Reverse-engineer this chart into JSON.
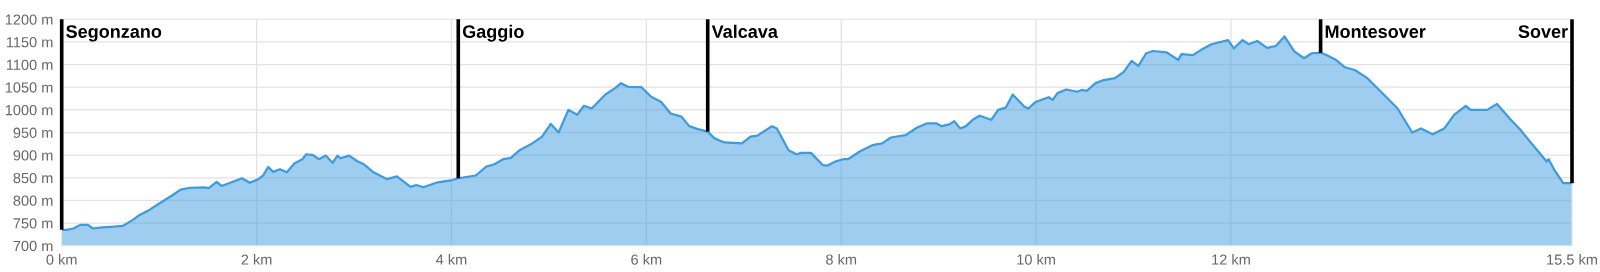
{
  "chart_data": {
    "type": "area",
    "x": [
      0,
      0.05,
      0.12,
      0.19,
      0.27,
      0.32,
      0.39,
      0.53,
      0.63,
      0.73,
      0.8,
      0.9,
      1.03,
      1.14,
      1.22,
      1.32,
      1.46,
      1.51,
      1.59,
      1.64,
      1.73,
      1.85,
      1.93,
      2.02,
      2.07,
      2.12,
      2.17,
      2.24,
      2.31,
      2.39,
      2.47,
      2.51,
      2.58,
      2.64,
      2.71,
      2.78,
      2.83,
      2.86,
      2.95,
      3.03,
      3.1,
      3.2,
      3.34,
      3.44,
      3.58,
      3.64,
      3.71,
      3.86,
      4.01,
      4.07,
      4.25,
      4.36,
      4.44,
      4.53,
      4.61,
      4.7,
      4.83,
      4.93,
      5.02,
      5.1,
      5.2,
      5.29,
      5.36,
      5.44,
      5.58,
      5.68,
      5.74,
      5.81,
      5.95,
      6.05,
      6.15,
      6.25,
      6.36,
      6.44,
      6.52,
      6.63,
      6.7,
      6.8,
      6.98,
      7.07,
      7.14,
      7.29,
      7.34,
      7.46,
      7.54,
      7.59,
      7.69,
      7.81,
      7.86,
      7.93,
      8.02,
      8.07,
      8.19,
      8.32,
      8.42,
      8.51,
      8.66,
      8.78,
      8.88,
      8.98,
      9.03,
      9.11,
      9.16,
      9.22,
      9.28,
      9.35,
      9.42,
      9.54,
      9.61,
      9.69,
      9.76,
      9.88,
      9.92,
      10.0,
      10.13,
      10.17,
      10.22,
      10.31,
      10.42,
      10.47,
      10.52,
      10.61,
      10.68,
      10.81,
      10.9,
      10.98,
      11.05,
      11.13,
      11.2,
      11.34,
      11.46,
      11.49,
      11.61,
      11.69,
      11.8,
      11.97,
      12.03,
      12.12,
      12.18,
      12.27,
      12.37,
      12.46,
      12.55,
      12.65,
      12.75,
      12.83,
      12.92,
      12.98,
      13.08,
      13.17,
      13.27,
      13.4,
      13.54,
      13.71,
      13.86,
      13.95,
      14.07,
      14.19,
      14.29,
      14.41,
      14.46,
      14.63,
      14.73,
      14.86,
      14.97,
      15.1,
      15.24,
      15.26,
      15.32,
      15.41,
      15.5
    ],
    "series": [
      {
        "color": "#3d9be0",
        "values": [
          735,
          735,
          738,
          746,
          746,
          738,
          740,
          742,
          744,
          757,
          768,
          779,
          797,
          812,
          824,
          828,
          829,
          827,
          841,
          832,
          839,
          849,
          839,
          847,
          856,
          874,
          863,
          869,
          862,
          882,
          891,
          902,
          900,
          891,
          899,
          883,
          899,
          893,
          899,
          887,
          880,
          862,
          847,
          853,
          830,
          834,
          829,
          840,
          845,
          849,
          855,
          875,
          880,
          891,
          894,
          911,
          926,
          941,
          969,
          950,
          1000,
          989,
          1009,
          1003,
          1034,
          1048,
          1059,
          1051,
          1050,
          1029,
          1018,
          992,
          985,
          964,
          958,
          952,
          937,
          928,
          926,
          941,
          943,
          964,
          959,
          911,
          902,
          905,
          905,
          878,
          877,
          885,
          891,
          891,
          908,
          922,
          926,
          939,
          944,
          961,
          970,
          970,
          964,
          968,
          975,
          959,
          964,
          978,
          987,
          978,
          1000,
          1005,
          1034,
          1007,
          1003,
          1018,
          1028,
          1022,
          1037,
          1045,
          1040,
          1044,
          1042,
          1059,
          1065,
          1070,
          1084,
          1108,
          1097,
          1125,
          1130,
          1127,
          1110,
          1123,
          1121,
          1132,
          1145,
          1154,
          1136,
          1154,
          1145,
          1152,
          1137,
          1141,
          1162,
          1129,
          1114,
          1125,
          1126,
          1121,
          1110,
          1094,
          1088,
          1070,
          1040,
          1003,
          950,
          959,
          946,
          959,
          989,
          1009,
          1000,
          1000,
          1013,
          981,
          956,
          922,
          886,
          891,
          867,
          838,
          838
        ]
      }
    ],
    "xlim": [
      0,
      15.5
    ],
    "xticks": [
      {
        "value": 0,
        "label": "0 km"
      },
      {
        "value": 2,
        "label": "2 km"
      },
      {
        "value": 4,
        "label": "4 km"
      },
      {
        "value": 6,
        "label": "6 km"
      },
      {
        "value": 8,
        "label": "8 km"
      },
      {
        "value": 10,
        "label": "10 km"
      },
      {
        "value": 12,
        "label": "12 km"
      },
      {
        "value": 15.5,
        "label": "15.5 km"
      }
    ],
    "ylim": [
      700,
      1200
    ],
    "yticks": [
      {
        "value": 700,
        "label": "700 m"
      },
      {
        "value": 750,
        "label": "750 m"
      },
      {
        "value": 800,
        "label": "800 m"
      },
      {
        "value": 850,
        "label": "850 m"
      },
      {
        "value": 900,
        "label": "900 m"
      },
      {
        "value": 950,
        "label": "950 m"
      },
      {
        "value": 1000,
        "label": "1000 m"
      },
      {
        "value": 1050,
        "label": "1050 m"
      },
      {
        "value": 1100,
        "label": "1100 m"
      },
      {
        "value": 1150,
        "label": "1150 m"
      },
      {
        "value": 1200,
        "label": "1200 m"
      }
    ],
    "grid": true,
    "ref_lines": [
      {
        "axis": "x",
        "value": 0,
        "label": "Segonzano",
        "color": "#000000"
      },
      {
        "axis": "x",
        "value": 4.07,
        "label": "Gaggio",
        "color": "#000000"
      },
      {
        "axis": "x",
        "value": 6.63,
        "label": "Valcava",
        "color": "#000000"
      },
      {
        "axis": "x",
        "value": 12.92,
        "label": "Montesover",
        "color": "#000000"
      },
      {
        "axis": "x",
        "value": 15.5,
        "label": "Sover",
        "color": "#000000"
      }
    ]
  }
}
